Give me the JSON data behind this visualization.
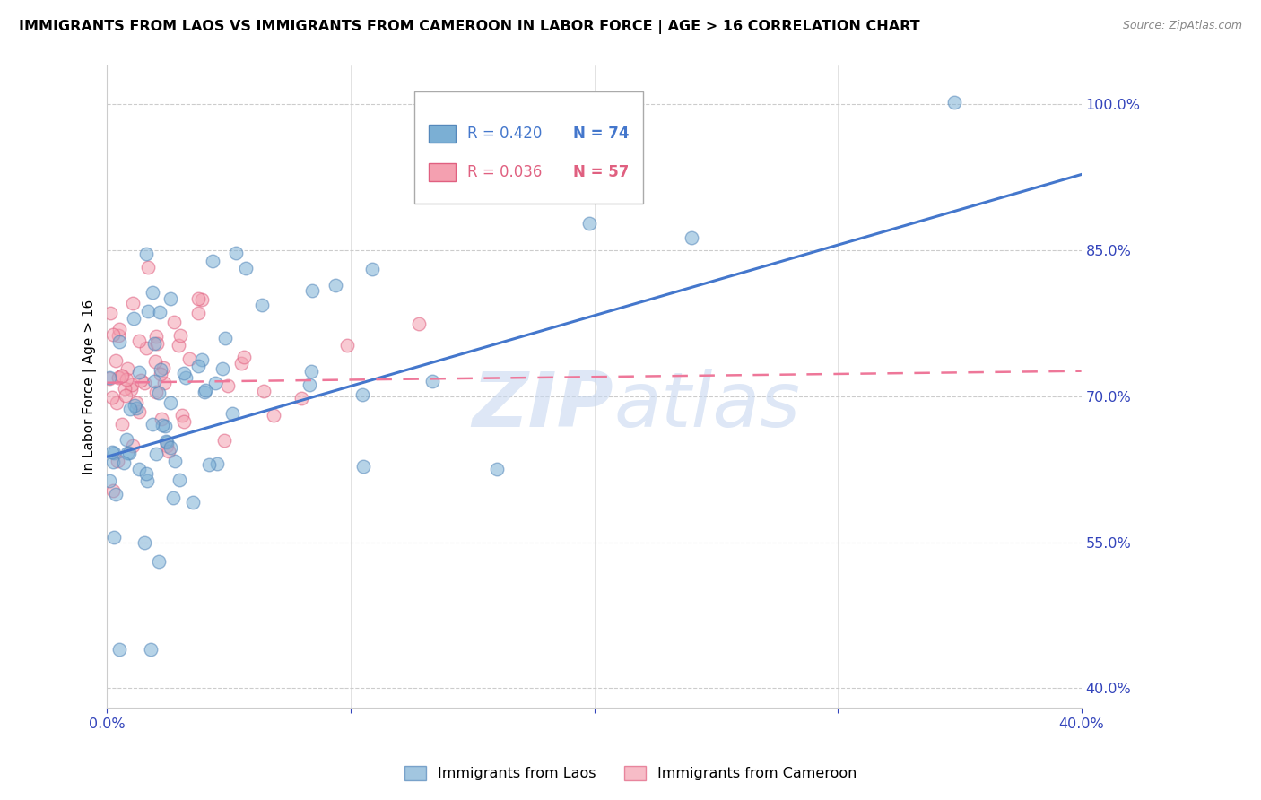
{
  "title": "IMMIGRANTS FROM LAOS VS IMMIGRANTS FROM CAMEROON IN LABOR FORCE | AGE > 16 CORRELATION CHART",
  "source": "Source: ZipAtlas.com",
  "ylabel": "In Labor Force | Age > 16",
  "xlim": [
    0.0,
    0.4
  ],
  "ylim": [
    0.38,
    1.04
  ],
  "yticks": [
    0.4,
    0.55,
    0.7,
    0.85,
    1.0
  ],
  "ytick_labels": [
    "40.0%",
    "55.0%",
    "70.0%",
    "85.0%",
    "100.0%"
  ],
  "xticks": [
    0.0,
    0.1,
    0.2,
    0.3,
    0.4
  ],
  "xtick_labels": [
    "0.0%",
    "",
    "",
    "",
    "40.0%"
  ],
  "color_laos": "#7BAFD4",
  "color_cameroon": "#F4A0B0",
  "edge_color_laos": "#5588BB",
  "edge_color_cameroon": "#E06080",
  "line_color_laos": "#4477CC",
  "line_color_cameroon": "#EE7799",
  "background_color": "#FFFFFF",
  "watermark_color": "#C8D8F0",
  "axis_label_color": "#3344BB",
  "title_fontsize": 11.5,
  "legend_R1": "R = 0.420",
  "legend_N1": "N = 74",
  "legend_R2": "R = 0.036",
  "legend_N2": "N = 57",
  "laos_line_y0": 0.638,
  "laos_line_y1": 0.928,
  "cam_line_y0": 0.714,
  "cam_line_y1": 0.726
}
